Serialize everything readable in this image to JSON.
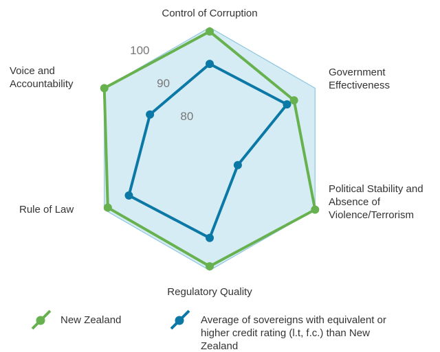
{
  "chart_data": {
    "type": "radar",
    "categories": [
      "Control of Corruption",
      "Government Effectiveness",
      "Political Stability and Absence of Violence/Terrorism",
      "Regulatory Quality",
      "Rule of Law",
      "Voice and Accountability"
    ],
    "series": [
      {
        "name": "New Zealand",
        "color": "#67b14f",
        "values": [
          99,
          94,
          100,
          99,
          99,
          100
        ]
      },
      {
        "name": "Average of sovereigns with equivalent or higher credit rating (l.t, f.c.) than New Zealand",
        "color": "#0b78a6",
        "values": [
          91,
          92,
          78,
          92,
          93,
          87
        ]
      }
    ],
    "rlim": [
      70,
      100
    ],
    "rticks": [
      80,
      90,
      100
    ],
    "fill_color": "#d6ecf4",
    "grid_color": "#8ec6de"
  }
}
